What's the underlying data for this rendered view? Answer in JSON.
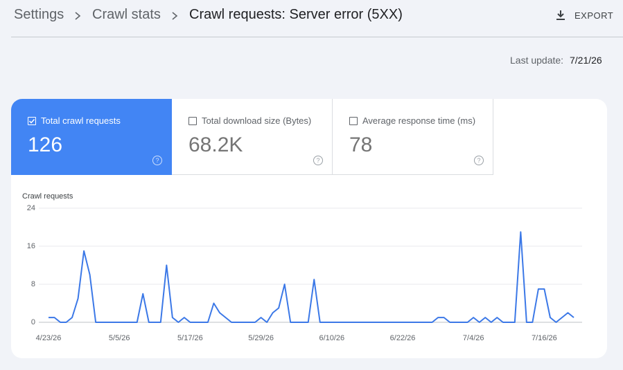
{
  "header": {
    "breadcrumbs": [
      "Settings",
      "Crawl stats",
      "Crawl requests: Server error (5XX)"
    ],
    "export": "EXPORT"
  },
  "last_update": {
    "label": "Last update:",
    "value": "7/21/26"
  },
  "metrics": [
    {
      "label": "Total crawl requests",
      "value": "126",
      "selected": true
    },
    {
      "label": "Total download size (Bytes)",
      "value": "68.2K",
      "selected": false
    },
    {
      "label": "Average response time (ms)",
      "value": "78",
      "selected": false
    }
  ],
  "chart_data": {
    "type": "line",
    "title": "Crawl requests",
    "color": "#3b78e7",
    "categories": [
      "4/23/26",
      null,
      null,
      null,
      null,
      null,
      null,
      null,
      null,
      null,
      null,
      null,
      "5/5/26",
      null,
      null,
      null,
      null,
      null,
      null,
      null,
      null,
      null,
      null,
      null,
      "5/17/26",
      null,
      null,
      null,
      null,
      null,
      null,
      null,
      null,
      null,
      null,
      null,
      "5/29/26",
      null,
      null,
      null,
      null,
      null,
      null,
      null,
      null,
      null,
      null,
      null,
      "6/10/26",
      null,
      null,
      null,
      null,
      null,
      null,
      null,
      null,
      null,
      null,
      null,
      "6/22/26",
      null,
      null,
      null,
      null,
      null,
      null,
      null,
      null,
      null,
      null,
      null,
      "7/4/26",
      null,
      null,
      null,
      null,
      null,
      null,
      null,
      null,
      null,
      null,
      null,
      "7/16/26",
      null,
      null,
      null,
      null,
      null
    ],
    "values": [
      1,
      1,
      0,
      0,
      1,
      5,
      15,
      10,
      0,
      0,
      0,
      0,
      0,
      0,
      0,
      0,
      6,
      0,
      0,
      0,
      12,
      1,
      0,
      1,
      0,
      0,
      0,
      0,
      4,
      2,
      1,
      0,
      0,
      0,
      0,
      0,
      1,
      0,
      2,
      3,
      8,
      0,
      0,
      0,
      0,
      9,
      0,
      0,
      0,
      0,
      0,
      0,
      0,
      0,
      0,
      0,
      0,
      0,
      0,
      0,
      0,
      0,
      0,
      0,
      0,
      0,
      1,
      1,
      0,
      0,
      0,
      0,
      1,
      0,
      1,
      0,
      1,
      0,
      0,
      0,
      19,
      0,
      0,
      7,
      7,
      1,
      0,
      1,
      2,
      1
    ],
    "ylim": [
      0,
      24
    ],
    "yticks": [
      0,
      8,
      16,
      24
    ],
    "grid": true
  }
}
